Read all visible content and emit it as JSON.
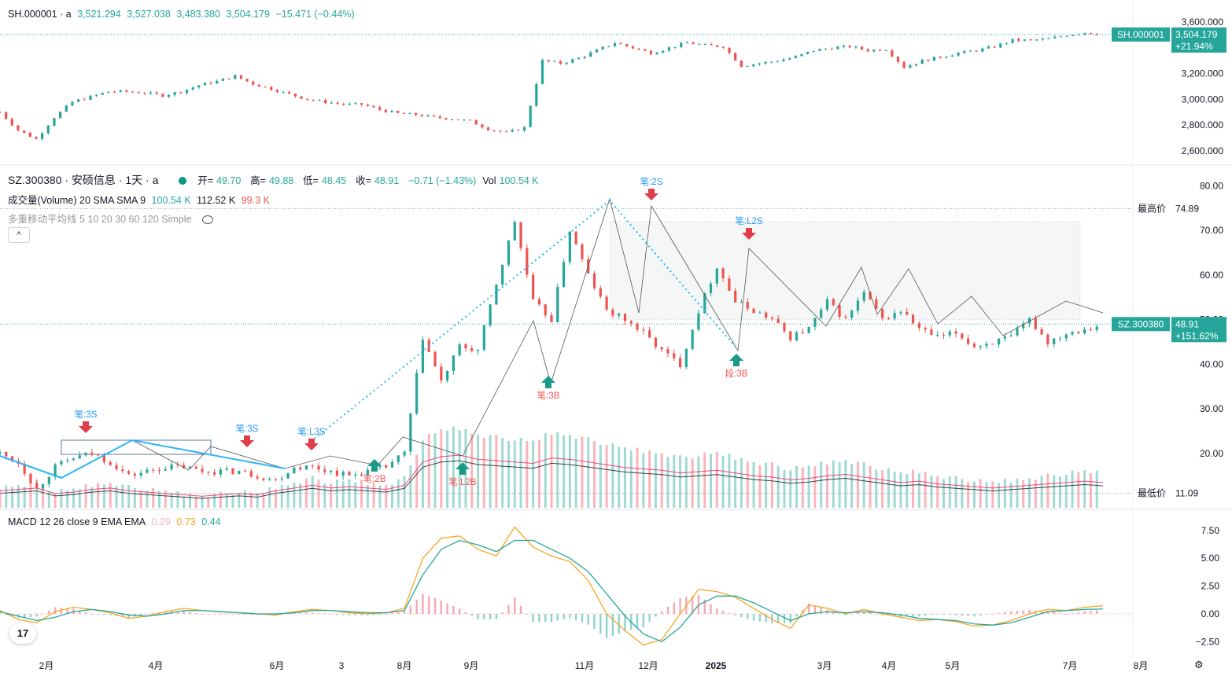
{
  "top_panel": {
    "symbol": "SH.000001 · a",
    "open": "3,521.294",
    "high": "3,527.038",
    "low": "3,483.380",
    "close": "3,504.179",
    "change": "−15.471 (−0.44%)",
    "price_tag_symbol": "SH.000001",
    "price_tag_value": "3,504.179",
    "price_tag_pct": "+21.94%"
  },
  "main_panel": {
    "symbol": "SZ.300380 · 安硕信息 · 1天 · a",
    "o_label": "开=",
    "o": "49.70",
    "h_label": "高=",
    "h": "49.88",
    "l_label": "低=",
    "l": "48.45",
    "c_label": "收=",
    "c": "48.91",
    "chg": "−0.71 (−1.43%)",
    "vol_label": "Vol",
    "vol": "100.54 K",
    "volume_legend": "成交量(Volume) 20 SMA SMA 9",
    "volume_v1": "100.54 K",
    "volume_v2": "112.52 K",
    "volume_v3": "99.3 K",
    "ma_legend": "多重移动平均线 5 10 20 30 60 120 Simple",
    "collapse": "^",
    "high_label": "最高价",
    "high_value": "74.89",
    "low_label": "最低价",
    "low_value": "11.09",
    "price_tag_symbol": "SZ.300380",
    "price_tag_value": "48.91",
    "price_tag_pct": "+151.62%"
  },
  "macd_panel": {
    "legend": "MACD 12 26 close 9 EMA EMA",
    "v1": "0.29",
    "v2": "0.73",
    "v3": "0.44"
  },
  "signals": [
    {
      "text": "笔:3S",
      "type": "sell"
    },
    {
      "text": "笔:3S",
      "type": "sell"
    },
    {
      "text": "笔:L3S",
      "type": "sell"
    },
    {
      "text": "笔:2B",
      "type": "buy"
    },
    {
      "text": "笔:L2B",
      "type": "buy"
    },
    {
      "text": "笔:3B",
      "type": "buy"
    },
    {
      "text": "笔:2S",
      "type": "sell"
    },
    {
      "text": "笔:L2S",
      "type": "sell"
    },
    {
      "text": "段:3B",
      "type": "buy"
    }
  ],
  "colors": {
    "up": "#26a69a",
    "down": "#ef5350",
    "signal_sell": "#e03c4a",
    "signal_buy": "#1a9a84",
    "macd_line": "#26a69a",
    "signal_line": "#f5a623",
    "segment_line": "#29b6f6"
  },
  "chart_data": [
    {
      "type": "candlestick",
      "name": "SH.000001",
      "y_ticks": [
        "3,600.000",
        "3,200.000",
        "3,000.000",
        "2,800.000",
        "2,600.000"
      ],
      "y_range": [
        2550,
        3650
      ],
      "closes": [
        2900,
        2760,
        2690,
        2860,
        2980,
        3020,
        3060,
        3060,
        3050,
        3030,
        3060,
        3110,
        3140,
        3180,
        3120,
        3080,
        3040,
        3000,
        2980,
        2960,
        2960,
        2920,
        2890,
        2880,
        2860,
        2850,
        2830,
        2770,
        2740,
        2780,
        3300,
        3280,
        3320,
        3380,
        3440,
        3400,
        3360,
        3400,
        3440,
        3420,
        3410,
        3260,
        3280,
        3300,
        3330,
        3380,
        3400,
        3410,
        3380,
        3390,
        3250,
        3300,
        3330,
        3360,
        3380,
        3410,
        3460,
        3460,
        3470,
        3500,
        3520,
        3504
      ]
    },
    {
      "type": "candlestick",
      "name": "SZ.300380",
      "y_ticks": [
        "80.00",
        "70.00",
        "60.00",
        "50.00",
        "40.00",
        "30.00",
        "20.00"
      ],
      "y_range": [
        8,
        82
      ],
      "closes": [
        20,
        18,
        12,
        17,
        19,
        20,
        18,
        15,
        16,
        17,
        17,
        16,
        16,
        16,
        15,
        14,
        17,
        17,
        16,
        15,
        16,
        17,
        20,
        46,
        36,
        44,
        43,
        58,
        72,
        54,
        50,
        70,
        60,
        52,
        50,
        47,
        43,
        40,
        52,
        62,
        54,
        52,
        50,
        46,
        48,
        54,
        50,
        56,
        50,
        52,
        48,
        46,
        47,
        44,
        45,
        46,
        50,
        45,
        47,
        48,
        49
      ]
    },
    {
      "type": "bar",
      "name": "Volume",
      "values": [
        18,
        20,
        22,
        14,
        16,
        20,
        22,
        18,
        16,
        14,
        12,
        10,
        12,
        14,
        12,
        18,
        22,
        26,
        22,
        24,
        22,
        20,
        26,
        60,
        68,
        70,
        64,
        62,
        60,
        58,
        66,
        64,
        60,
        56,
        52,
        50,
        48,
        44,
        46,
        48,
        44,
        40,
        38,
        34,
        36,
        40,
        42,
        38,
        34,
        30,
        32,
        28,
        26,
        24,
        22,
        24,
        26,
        28,
        30,
        32,
        30
      ]
    },
    {
      "type": "line",
      "name": "MACD",
      "y_ticks": [
        "7.50",
        "5.00",
        "2.50",
        "0.00",
        "−2.50"
      ],
      "y_range": [
        -3.6,
        8.4
      ],
      "macd": [
        0.3,
        -0.5,
        -0.8,
        0.2,
        0.6,
        0.4,
        0.1,
        -0.4,
        -0.2,
        0.2,
        0.5,
        0.3,
        0.2,
        0.1,
        0.0,
        -0.1,
        0.2,
        0.4,
        0.3,
        0.1,
        0.0,
        0.1,
        0.5,
        5.0,
        6.8,
        7.0,
        5.8,
        5.2,
        7.8,
        6.0,
        5.2,
        4.7,
        3.0,
        0.0,
        -1.5,
        -2.8,
        -2.3,
        0.0,
        2.2,
        2.0,
        1.5,
        0.5,
        -0.5,
        -1.3,
        0.8,
        0.5,
        0.0,
        0.4,
        0.0,
        -0.3,
        -0.6,
        -0.5,
        -0.7,
        -1.1,
        -1.0,
        -0.6,
        0.0,
        0.4,
        0.3,
        0.6,
        0.73
      ],
      "signal": [
        0.2,
        -0.2,
        -0.6,
        -0.3,
        0.2,
        0.4,
        0.2,
        -0.1,
        -0.2,
        0.0,
        0.3,
        0.3,
        0.2,
        0.1,
        0.0,
        0.0,
        0.1,
        0.3,
        0.3,
        0.2,
        0.1,
        0.1,
        0.3,
        3.5,
        5.8,
        6.6,
        6.2,
        5.6,
        6.6,
        6.6,
        5.8,
        5.0,
        3.8,
        1.8,
        -0.2,
        -1.8,
        -2.5,
        -1.2,
        0.8,
        1.6,
        1.6,
        1.0,
        0.2,
        -0.6,
        0.0,
        0.2,
        0.1,
        0.2,
        0.1,
        -0.1,
        -0.4,
        -0.5,
        -0.6,
        -0.9,
        -1.0,
        -0.8,
        -0.3,
        0.2,
        0.3,
        0.4,
        0.44
      ]
    }
  ],
  "x_axis": {
    "labels": [
      "2月",
      "4月",
      "6月",
      "3",
      "8月",
      "9月",
      "11月",
      "12月",
      "2025",
      "3月",
      "4月",
      "5月",
      "7月",
      "8月"
    ]
  }
}
